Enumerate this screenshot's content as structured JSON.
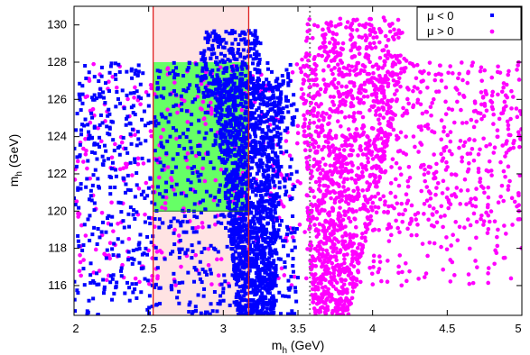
{
  "chart_data": {
    "type": "scatter",
    "xlabel_main": "m",
    "xlabel_sub": "h",
    "xlabel_unit": " (GeV)",
    "ylabel_main": "m",
    "ylabel_sub": "h",
    "ylabel_unit": " (GeV)",
    "xlim": [
      2,
      5
    ],
    "ylim": [
      114.4,
      131
    ],
    "xticks": [
      "2",
      "2.5",
      "3",
      "3.5",
      "4",
      "4.5",
      "5"
    ],
    "yticks": [
      "116",
      "118",
      "120",
      "122",
      "124",
      "126",
      "128",
      "130"
    ],
    "grid": false,
    "legend_position": "top-right",
    "regions": {
      "pink_band_x": [
        2.53,
        3.17
      ],
      "green_box": {
        "x": [
          2.53,
          3.17
        ],
        "y": [
          120,
          128
        ]
      },
      "dotted_vertical_x": 3.58
    },
    "series": [
      {
        "name": "μ < 0",
        "marker": "square",
        "color": "#0000ff",
        "clusters": [
          {
            "x": [
              2.0,
              3.5
            ],
            "y": [
              114.4,
              128
            ],
            "n": 900
          },
          {
            "x": [
              2.9,
              3.45
            ],
            "y": [
              114.4,
              127
            ],
            "n": 1400
          },
          {
            "x": [
              2.85,
              3.25
            ],
            "y": [
              126,
              129.7
            ],
            "n": 250
          }
        ]
      },
      {
        "name": "μ > 0",
        "marker": "circle",
        "color": "#ff00ff",
        "clusters": [
          {
            "x": [
              2.0,
              5.0
            ],
            "y": [
              116,
              128
            ],
            "n": 700
          },
          {
            "x": [
              3.4,
              4.2
            ],
            "y": [
              114.4,
              130.4
            ],
            "n": 1200
          },
          {
            "x": [
              4.0,
              5.0
            ],
            "y": [
              119,
              128
            ],
            "n": 300
          }
        ]
      }
    ]
  }
}
